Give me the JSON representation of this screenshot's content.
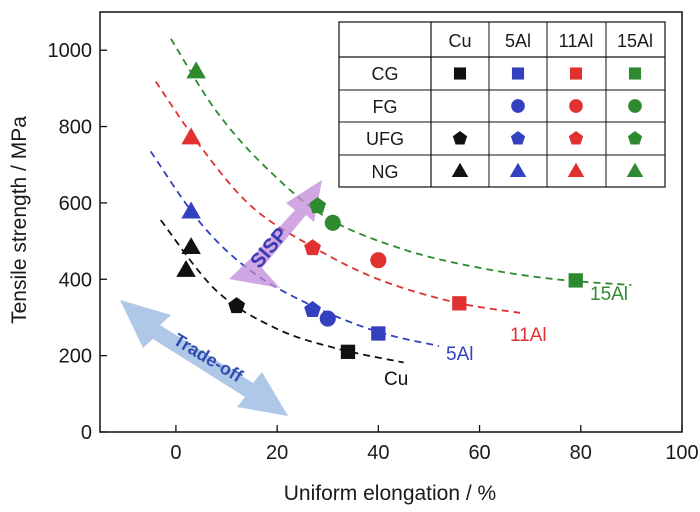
{
  "chart_data": {
    "type": "scatter",
    "xlabel": "Uniform elongation / %",
    "ylabel": "Tensile strength / MPa",
    "xlim": [
      -15,
      100
    ],
    "ylim": [
      0,
      1100
    ],
    "x_ticks": [
      "0",
      "20",
      "40",
      "60",
      "80",
      "100"
    ],
    "y_ticks": [
      "0",
      "200",
      "400",
      "600",
      "800",
      "1000"
    ],
    "grid": false,
    "legend": {
      "placement": "top-right",
      "columns": [
        "Cu",
        "5Al",
        "11Al",
        "15Al"
      ],
      "rows": [
        "CG",
        "FG",
        "UFG",
        "NG"
      ],
      "markers": {
        "CG": "square",
        "FG": "circle",
        "UFG": "pentagon",
        "NG": "triangle"
      }
    },
    "colors": {
      "Cu": "#111111",
      "5Al": "#3340c0",
      "11Al": "#e03030",
      "15Al": "#2e8a2e"
    },
    "series": [
      {
        "name": "Cu",
        "trend_label": "Cu",
        "points": [
          {
            "grain": "NG",
            "x": 2,
            "y": 425
          },
          {
            "grain": "NG",
            "x": 3,
            "y": 485
          },
          {
            "grain": "UFG",
            "x": 12,
            "y": 330
          },
          {
            "grain": "CG",
            "x": 34,
            "y": 210
          }
        ],
        "trend": [
          [
            -3,
            555
          ],
          [
            8,
            370
          ],
          [
            20,
            270
          ],
          [
            32,
            218
          ],
          [
            45,
            182
          ]
        ]
      },
      {
        "name": "5Al",
        "trend_label": "5Al",
        "points": [
          {
            "grain": "NG",
            "x": 3,
            "y": 578
          },
          {
            "grain": "UFG",
            "x": 27,
            "y": 320
          },
          {
            "grain": "FG",
            "x": 30,
            "y": 297
          },
          {
            "grain": "CG",
            "x": 40,
            "y": 258
          }
        ],
        "trend": [
          [
            -5,
            735
          ],
          [
            5,
            545
          ],
          [
            15,
            420
          ],
          [
            27,
            330
          ],
          [
            40,
            262
          ],
          [
            52,
            225
          ]
        ]
      },
      {
        "name": "11Al",
        "trend_label": "11Al",
        "points": [
          {
            "grain": "NG",
            "x": 3,
            "y": 772
          },
          {
            "grain": "UFG",
            "x": 27,
            "y": 482
          },
          {
            "grain": "FG",
            "x": 40,
            "y": 450
          },
          {
            "grain": "CG",
            "x": 56,
            "y": 337
          }
        ],
        "trend": [
          [
            -4,
            918
          ],
          [
            5,
            745
          ],
          [
            15,
            590
          ],
          [
            27,
            485
          ],
          [
            40,
            400
          ],
          [
            55,
            340
          ],
          [
            68,
            312
          ]
        ]
      },
      {
        "name": "15Al",
        "trend_label": "15Al",
        "points": [
          {
            "grain": "NG",
            "x": 4,
            "y": 945
          },
          {
            "grain": "UFG",
            "x": 28,
            "y": 592
          },
          {
            "grain": "FG",
            "x": 31,
            "y": 548
          },
          {
            "grain": "CG",
            "x": 79,
            "y": 397
          }
        ],
        "trend": [
          [
            -1,
            1030
          ],
          [
            8,
            840
          ],
          [
            18,
            690
          ],
          [
            30,
            560
          ],
          [
            45,
            478
          ],
          [
            60,
            430
          ],
          [
            75,
            400
          ],
          [
            90,
            385
          ]
        ]
      }
    ],
    "annotations": [
      {
        "text": "SISP",
        "type": "arrow-up-right"
      },
      {
        "text": "Trade-off",
        "type": "double-arrow"
      }
    ]
  }
}
